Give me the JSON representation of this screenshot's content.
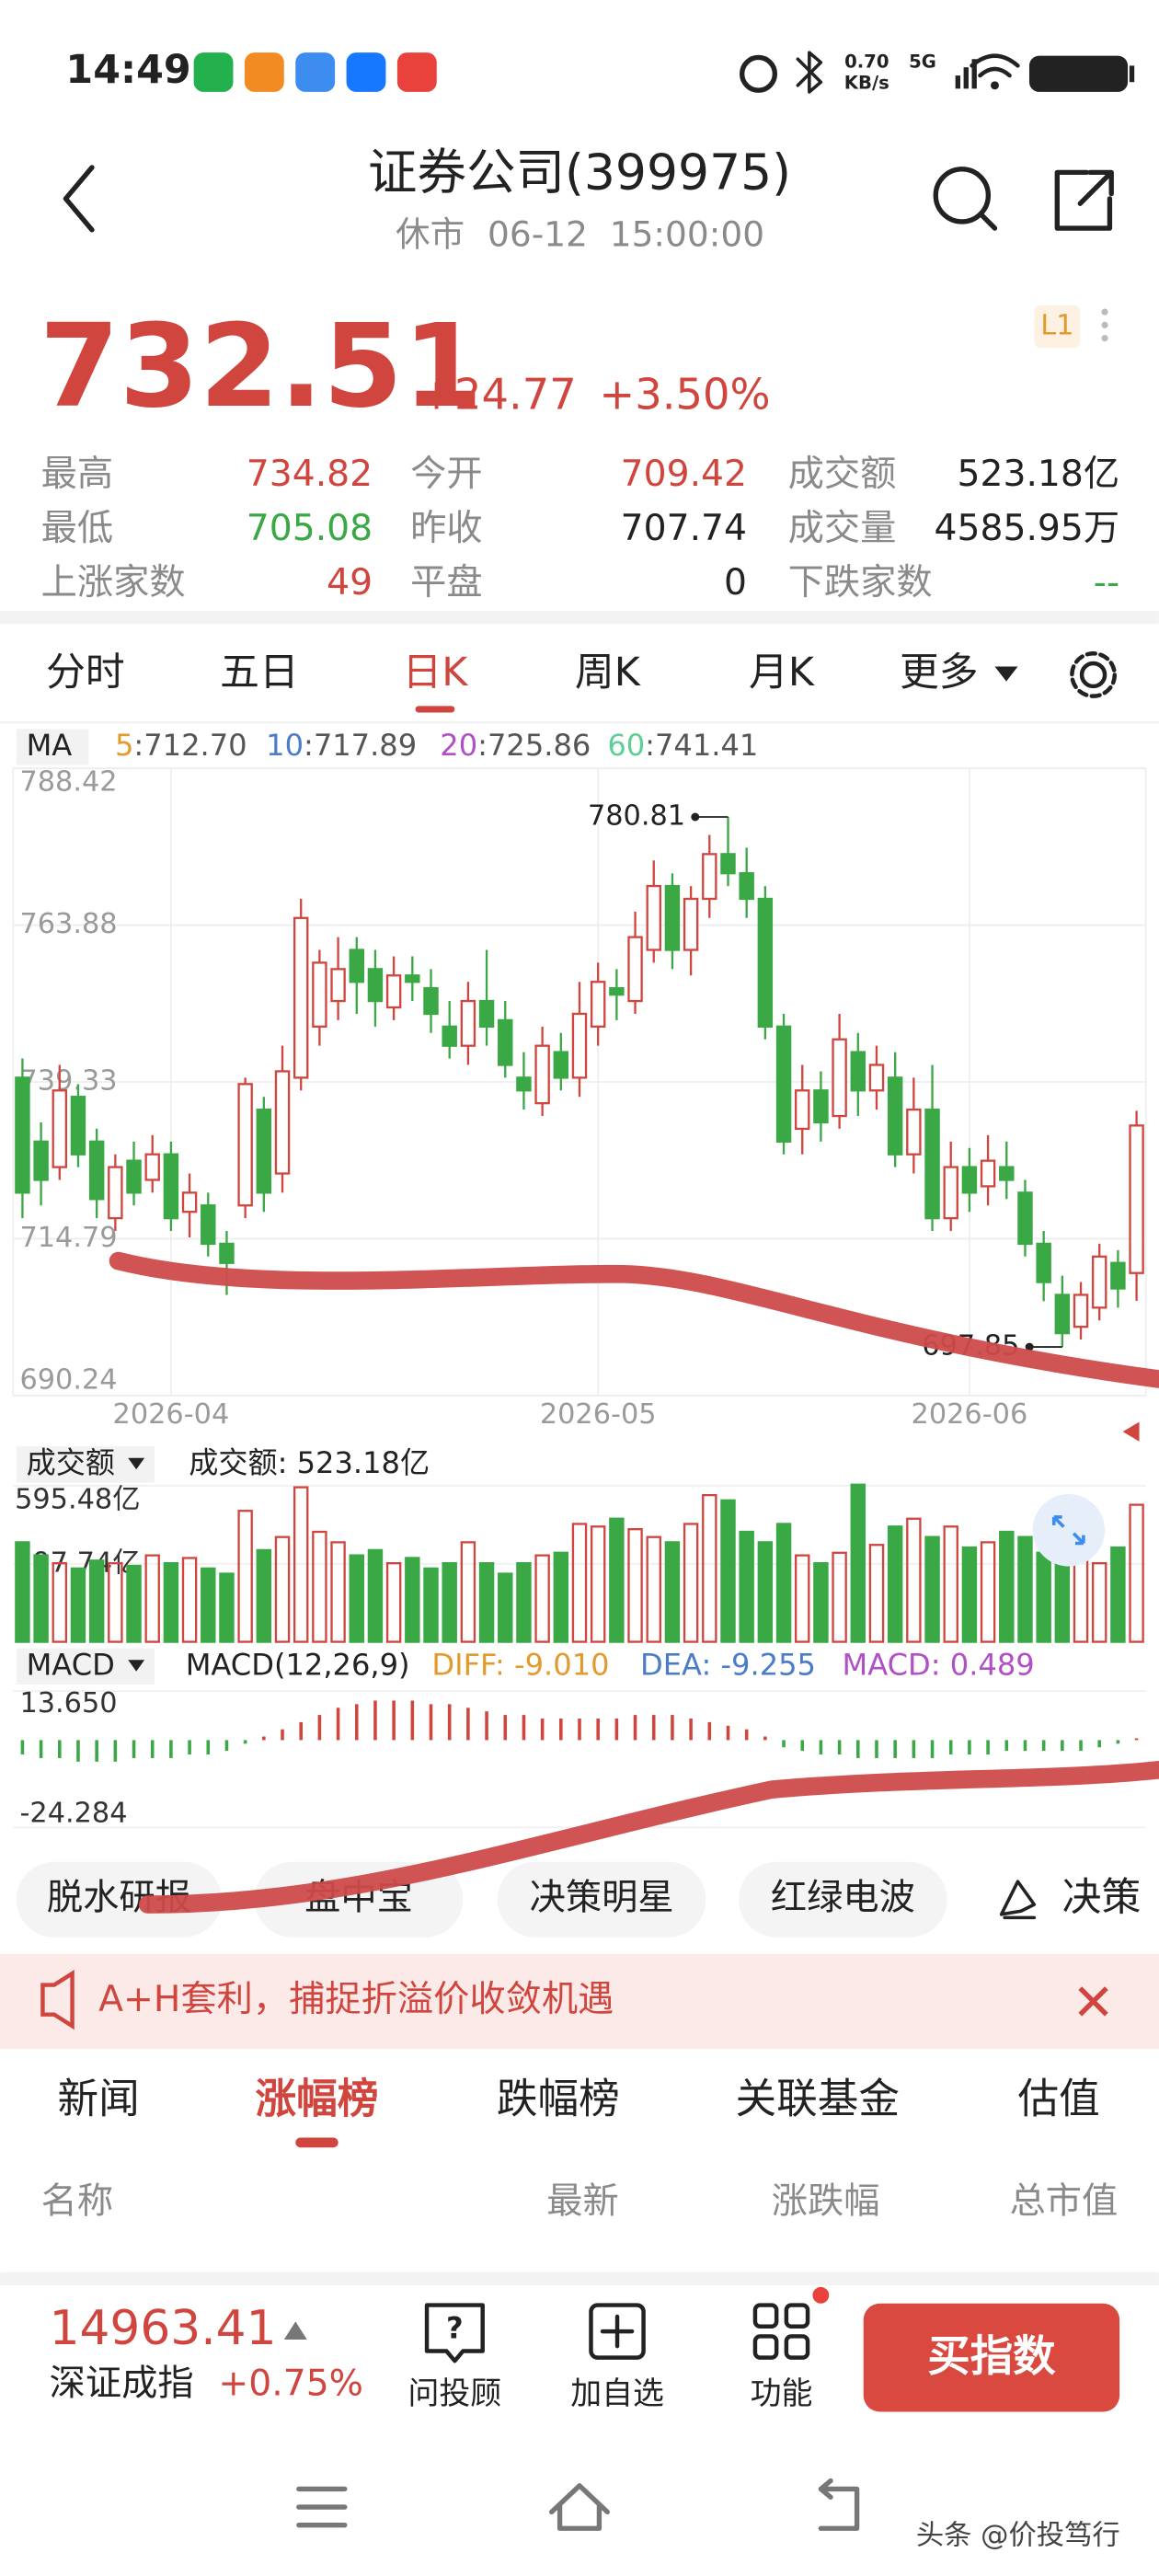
{
  "status_bar": {
    "time": "14:49",
    "speed": "0.70",
    "speed_unit": "KB/s",
    "network": "5G"
  },
  "header": {
    "title": "证券公司(399975)",
    "market_state": "休市",
    "datetime": "06-12  15:00:00"
  },
  "quote": {
    "price": "732.51",
    "change": "+24.77",
    "change_pct": "+3.50%",
    "level": "L1"
  },
  "stats": [
    [
      {
        "label": "最高",
        "value": "734.82"
      },
      {
        "label": "今开",
        "value": "709.42"
      },
      {
        "label": "成交额",
        "value": "523.18亿"
      }
    ],
    [
      {
        "label": "最低",
        "value": "705.08"
      },
      {
        "label": "昨收",
        "value": "707.74"
      },
      {
        "label": "成交量",
        "value": "4585.95万"
      }
    ],
    [
      {
        "label": "上涨家数",
        "value": "49"
      },
      {
        "label": "平盘",
        "value": "0"
      },
      {
        "label": "下跌家数",
        "value": "--"
      }
    ]
  ],
  "period_tabs": [
    "分时",
    "五日",
    "日K",
    "周K",
    "月K",
    "更多"
  ],
  "ma_legend": {
    "label": "MA",
    "items": [
      {
        "period": "5",
        "value": ":712.70",
        "color": "#e39a2c"
      },
      {
        "period": "10",
        "value": ":717.89",
        "color": "#4a7cc9"
      },
      {
        "period": "20",
        "value": ":725.86",
        "color": "#b04fc6"
      },
      {
        "period": "60",
        "value": ":741.41",
        "color": "#5fcf95"
      }
    ]
  },
  "chart_data": [
    {
      "type": "candlestick",
      "categories": [
        null,
        null,
        null,
        null,
        null,
        null,
        null,
        null,
        "2026-04",
        null,
        null,
        null,
        null,
        null,
        null,
        null,
        null,
        null,
        null,
        null,
        null,
        null,
        null,
        null,
        null,
        null,
        null,
        null,
        null,
        null,
        null,
        "2026-05",
        null,
        null,
        null,
        null,
        null,
        null,
        null,
        null,
        null,
        null,
        null,
        null,
        null,
        null,
        null,
        null,
        null,
        null,
        null,
        "2026-06",
        null,
        null,
        null,
        null,
        null,
        null,
        null,
        null,
        null
      ],
      "open": [
        740,
        730,
        726,
        737,
        730,
        718,
        727,
        724,
        728,
        719,
        720,
        714,
        720,
        735,
        725,
        740,
        748,
        752,
        760,
        757,
        751,
        756,
        754,
        748,
        745,
        752,
        749,
        740,
        736,
        744,
        740,
        748,
        754,
        752,
        760,
        770,
        760,
        768,
        775,
        772,
        768,
        748,
        732,
        738,
        734,
        744,
        738,
        740,
        728,
        735,
        718,
        726,
        723,
        726,
        722,
        714,
        706,
        701,
        704,
        711,
        709.42
      ],
      "close": [
        722,
        724,
        738,
        728,
        721,
        726,
        722,
        728,
        718,
        722,
        714,
        711,
        739,
        722,
        741,
        765,
        758,
        757,
        755,
        752,
        756,
        755,
        750,
        745,
        752,
        748,
        742,
        738,
        745,
        740,
        750,
        755,
        753,
        762,
        770,
        760,
        768,
        775,
        772,
        768,
        748,
        730,
        738,
        733,
        746,
        738,
        742,
        728,
        735,
        718,
        726,
        722,
        727,
        724,
        714,
        708,
        700,
        706,
        712,
        707,
        732.51
      ],
      "high": [
        743,
        733,
        742,
        739,
        732,
        728,
        730,
        731,
        730,
        725,
        722,
        716,
        740,
        737,
        745,
        768,
        760,
        762,
        762,
        760,
        759,
        759,
        757,
        752,
        755,
        760,
        752,
        744,
        748,
        747,
        755,
        758,
        757,
        766,
        774,
        772,
        770,
        778,
        780.81,
        776,
        770,
        750,
        742,
        741,
        750,
        747,
        745,
        744,
        740,
        742,
        730,
        729,
        731,
        730,
        724,
        716,
        709,
        708,
        714,
        713,
        734.82
      ],
      "low": [
        718,
        720,
        724,
        726,
        718,
        716,
        720,
        722,
        716,
        715,
        712,
        706,
        718,
        719,
        722,
        738,
        745,
        749,
        750,
        748,
        749,
        752,
        747,
        743,
        742,
        745,
        740,
        735,
        734,
        738,
        737,
        745,
        749,
        750,
        758,
        757,
        756,
        765,
        770,
        765,
        746,
        728,
        728,
        730,
        732,
        734,
        735,
        726,
        725,
        716,
        716,
        719,
        720,
        721,
        712,
        705,
        697.85,
        699,
        702,
        704,
        705.08
      ],
      "ylim": [
        690.24,
        788.42
      ],
      "yticks": [
        788.42,
        763.88,
        739.33,
        714.79,
        690.24
      ],
      "up_color": "#d0463f",
      "down_color": "#3aa845",
      "grid": true
    },
    {
      "type": "bar",
      "indicator": "成交额",
      "summary": "成交额: 523.18亿",
      "values": [
        380,
        330,
        300,
        280,
        310,
        300,
        290,
        330,
        300,
        320,
        280,
        260,
        500,
        350,
        400,
        590,
        420,
        380,
        330,
        350,
        300,
        320,
        280,
        300,
        380,
        300,
        260,
        300,
        330,
        340,
        450,
        440,
        470,
        430,
        400,
        380,
        450,
        560,
        540,
        420,
        380,
        450,
        330,
        300,
        340,
        600,
        370,
        440,
        470,
        400,
        440,
        360,
        380,
        420,
        400,
        340,
        320,
        380,
        300,
        360,
        523.18
      ],
      "ylim": [
        0,
        595.48
      ],
      "yticks": [
        {
          "value": 595.48,
          "label": "595.48亿"
        },
        {
          "value": 297.74,
          "label": "297.74亿"
        }
      ]
    },
    {
      "type": "bar",
      "indicator": "MACD",
      "params": "MACD(12,26,9)",
      "diff": "DIFF: -9.010",
      "dea": "DEA: -9.255",
      "macd": "MACD: 0.489",
      "values": [
        -4,
        -5,
        -5,
        -6,
        -6,
        -6,
        -5,
        -5,
        -5,
        -4,
        -4,
        -3,
        -1,
        1,
        3,
        5,
        7,
        9,
        10,
        11,
        11,
        11,
        10,
        10,
        9,
        8,
        7,
        7,
        6,
        6,
        6,
        6,
        6,
        7,
        7,
        7,
        6,
        5,
        4,
        3,
        1,
        -2,
        -3,
        -4,
        -4,
        -5,
        -5,
        -5,
        -5,
        -5,
        -4,
        -4,
        -4,
        -3,
        -3,
        -3,
        -3,
        -3,
        -2,
        -1,
        0.489
      ],
      "ylim": [
        -24.284,
        13.65
      ],
      "yticks": [
        {
          "value": 13.65,
          "label": "13.650"
        },
        -24.284
      ],
      "up_color": "#d0463f",
      "down_color": "#3aa845"
    }
  ],
  "feature_chips": [
    "脱水研报",
    "盘中宝",
    "决策明星",
    "红绿电波",
    "决策"
  ],
  "banner": {
    "text": "A+H套利，捕捉折溢价收敛机遇"
  },
  "section_tabs": [
    "新闻",
    "涨幅榜",
    "跌幅榜",
    "关联基金",
    "估值"
  ],
  "table": {
    "columns": [
      "名称",
      "最新",
      "涨跌幅",
      "总市值"
    ]
  },
  "bottom_bar": {
    "index_value": "14963.41",
    "index_name": "深证成指",
    "index_change": "+0.75%",
    "actions": [
      "问投顾",
      "加自选",
      "功能"
    ],
    "buy_button": "买指数"
  },
  "watermark": "头条 @价投笃行"
}
